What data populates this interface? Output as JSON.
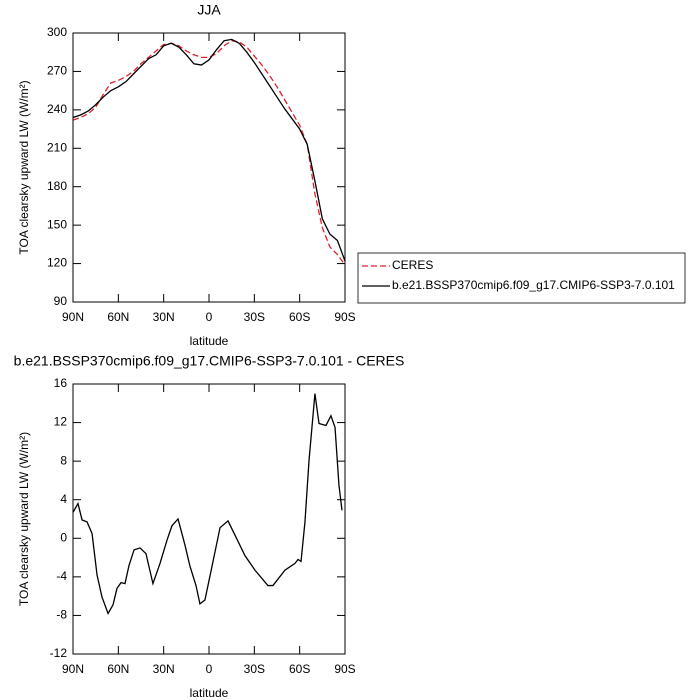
{
  "chart_data": [
    {
      "type": "line",
      "title": "JJA",
      "xlabel": "latitude",
      "ylabel": "TOA clearsky upward LW (W/m²)",
      "x": [
        90,
        85,
        80,
        75,
        70,
        65,
        60,
        55,
        50,
        45,
        40,
        35,
        30,
        25,
        20,
        15,
        10,
        5,
        0,
        -5,
        -10,
        -15,
        -20,
        -25,
        -30,
        -35,
        -40,
        -45,
        -50,
        -55,
        -60,
        -65,
        -70,
        -75,
        -80,
        -85,
        -90
      ],
      "series": [
        {
          "name": "CERES",
          "color": "#e0202a",
          "dashed": true,
          "values": [
            232,
            234,
            237,
            242,
            252,
            261,
            263,
            266,
            270,
            276,
            281,
            286,
            291,
            292,
            290,
            286,
            283,
            281,
            281,
            284,
            290,
            294,
            293,
            289,
            282,
            275,
            267,
            258,
            248,
            238,
            228,
            213,
            175,
            148,
            133,
            127,
            119
          ]
        },
        {
          "name": "b.e21.BSSP370cmip6.f09_g17.CMIP6-SSP3-7.0.101",
          "color": "#000000",
          "dashed": false,
          "values": [
            234,
            236,
            239,
            244,
            250,
            255,
            258,
            262,
            268,
            274,
            280,
            283,
            290,
            292,
            289,
            283,
            276,
            275,
            279,
            287,
            294,
            295,
            292,
            285,
            277,
            268,
            259,
            250,
            241,
            233,
            225,
            213,
            185,
            155,
            143,
            138,
            122
          ]
        }
      ],
      "xlim": [
        90,
        -90
      ],
      "xticks": [
        {
          "value": 90,
          "label": "90N"
        },
        {
          "value": 60,
          "label": "60N"
        },
        {
          "value": 30,
          "label": "30N"
        },
        0,
        {
          "value": -30,
          "label": "30S"
        },
        {
          "value": -60,
          "label": "60S"
        },
        {
          "value": -90,
          "label": "90S"
        }
      ],
      "ylim": [
        90,
        300
      ],
      "yticks": [
        90,
        120,
        150,
        180,
        210,
        240,
        270,
        300
      ],
      "legend": "right"
    },
    {
      "type": "line",
      "title": "b.e21.BSSP370cmip6.f09_g17.CMIP6-SSP3-7.0.101 - CERES",
      "xlabel": "latitude",
      "ylabel": "TOA clearsky upward LW (W/m²)",
      "x": [
        90,
        86.7,
        84,
        80.7,
        77.4,
        74.1,
        70.8,
        66.8,
        63.5,
        60.9,
        58.2,
        55.6,
        52.9,
        49.6,
        45.6,
        41.7,
        37.1,
        32.4,
        27.8,
        24.5,
        20.5,
        15.9,
        12.6,
        8.6,
        6,
        2.7,
        -2,
        -7.3,
        -12.6,
        -17.9,
        -23.8,
        -30.4,
        -39,
        -42.3,
        -50.3,
        -56.9,
        -58.9,
        -60.9,
        -63.5,
        -66.2,
        -70.1,
        -72.8,
        -77.4,
        -80.7,
        -83.4,
        -86,
        -88
      ],
      "color": "#000000",
      "values": [
        2.7,
        3.6,
        1.9,
        1.7,
        0.5,
        -3.8,
        -6.1,
        -7.8,
        -6.9,
        -5.2,
        -4.6,
        -4.7,
        -2.8,
        -1.2,
        -1,
        -1.6,
        -4.7,
        -2.6,
        -0.2,
        1.3,
        2,
        -0.7,
        -2.9,
        -4.9,
        -6.8,
        -6.4,
        -2.9,
        1.1,
        1.8,
        0.1,
        -1.8,
        -3.3,
        -4.9,
        -4.9,
        -3.3,
        -2.6,
        -2.2,
        -2.4,
        1.7,
        8.1,
        15,
        11.9,
        11.7,
        12.7,
        11.5,
        5.5,
        2.9
      ],
      "xlim": [
        90,
        -90
      ],
      "xticks": [
        {
          "value": 90,
          "label": "90N"
        },
        {
          "value": 60,
          "label": "60N"
        },
        {
          "value": 30,
          "label": "30N"
        },
        0,
        {
          "value": -30,
          "label": "30S"
        },
        {
          "value": -60,
          "label": "60S"
        },
        {
          "value": -90,
          "label": "90S"
        }
      ],
      "ylim": [
        -12,
        16
      ],
      "yticks": [
        -12,
        -8,
        -4,
        0,
        4,
        8,
        12,
        16
      ]
    }
  ]
}
